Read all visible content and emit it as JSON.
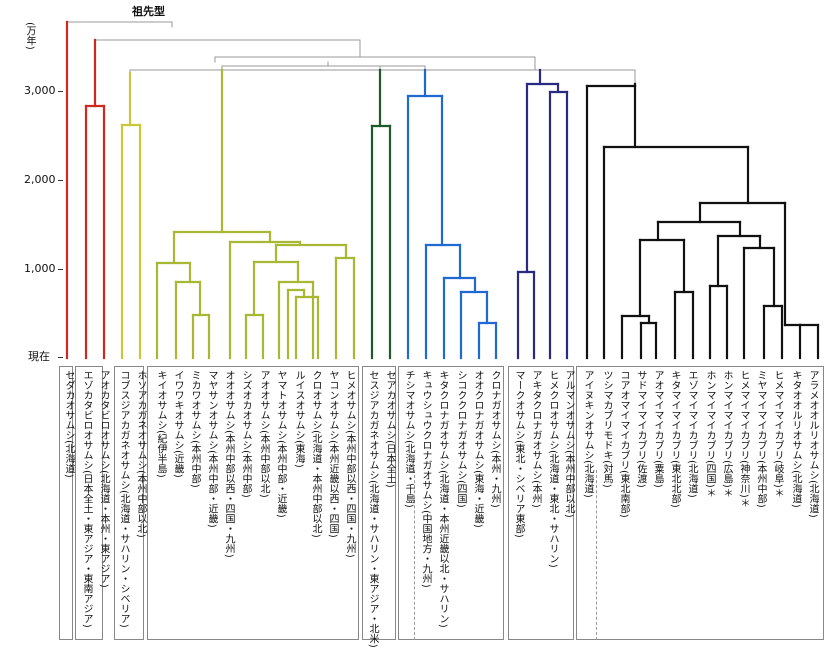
{
  "ancestor_label": "祖先型",
  "axis": {
    "unit": "(万年)",
    "ticks": [
      {
        "label": "3,000",
        "value": 3000
      },
      {
        "label": "2,000",
        "value": 2000
      },
      {
        "label": "1,000",
        "value": 1000
      },
      {
        "label": "現在",
        "value": 0
      }
    ]
  },
  "colors": {
    "red_clade": "#cc2a1e",
    "yellow_clade": "#c8c83c",
    "olive_clade": "#a8b832",
    "green_clade": "#1f5a2a",
    "blue_clade": "#1e6ad2",
    "purple_clade": "#2a2a82",
    "black_clade": "#111111",
    "gray_root": "#999999"
  },
  "leaves": [
    {
      "name": "セダカオサムシ(北海道)",
      "color": "red"
    },
    {
      "name": "エゾカタビロオサムシ(日本全土・東アジア・東南アジア)",
      "color": "red"
    },
    {
      "name": "アオカタビロオサムシ(北海道・本州・東アジア)",
      "color": "red"
    },
    {
      "name": "コブスジアカガネオサムシ(北海道・サハリン・シベリア)",
      "color": "yellow"
    },
    {
      "name": "ホソアカガネオサムシ(本州中部以北)",
      "color": "yellow"
    },
    {
      "name": "キイオサムシ(紀伊半島)",
      "color": "olive"
    },
    {
      "name": "イワワキオサムシ(近畿)",
      "color": "olive"
    },
    {
      "name": "ミカワオサムシ(本州中部)",
      "color": "olive"
    },
    {
      "name": "マヤサンオサムシ(本州中部・近畿)",
      "color": "olive"
    },
    {
      "name": "オオオサムシ(本州中部以西・四国・九州)",
      "color": "olive"
    },
    {
      "name": "シズオカオサムシ(本州中部)",
      "color": "olive"
    },
    {
      "name": "アオオサムシ(本州中部以北)",
      "color": "olive"
    },
    {
      "name": "ヤマトオサムシ(本州中部・近畿)",
      "color": "olive"
    },
    {
      "name": "ルイスオサムシ(東海)",
      "color": "olive"
    },
    {
      "name": "クロオサムシ(北海道・本州中部以北)",
      "color": "olive"
    },
    {
      "name": "ヤコンオサムシ(本州近畿以西・四国)",
      "color": "olive"
    },
    {
      "name": "ヒメオサムシ(本州中部以西・四国・九州)",
      "color": "olive"
    },
    {
      "name": "セスジアカガネオサムシ(北海道・サハリン・東アジア・北米)",
      "color": "green"
    },
    {
      "name": "セアカオサムシ(日本全土)",
      "color": "green"
    },
    {
      "name": "チシマオサムシ(北海道・千島)",
      "color": "blue"
    },
    {
      "name": "キュウシュウクロナガオサムシ(中国地方・九州)",
      "color": "blue"
    },
    {
      "name": "キタクロナガオサムシ(北海道・本州近畿以北・サハリン)",
      "color": "blue"
    },
    {
      "name": "シコククロナガオサムシ(四国)",
      "color": "blue"
    },
    {
      "name": "オオクロナガオサムシ(東海・近畿)",
      "color": "blue"
    },
    {
      "name": "クロナガオサムシ(本州・九州)",
      "color": "blue"
    },
    {
      "name": "マークオサムシ(東北・シベリア東部)",
      "color": "purple"
    },
    {
      "name": "アキタクロナガオサムシ(本州)",
      "color": "purple"
    },
    {
      "name": "ヒメクロオサムシ(北海道・東北・サハリン)",
      "color": "purple"
    },
    {
      "name": "アルマンオサムシ(本州中部以北)",
      "color": "purple"
    },
    {
      "name": "アイヌキンオサムシ(北海道)",
      "color": "black"
    },
    {
      "name": "ツシマカブリモドキ(対馬)",
      "color": "black"
    },
    {
      "name": "コアオマイマイカブリ(東北南部)",
      "color": "black"
    },
    {
      "name": "サドマイマイカブリ(佐渡)",
      "color": "black"
    },
    {
      "name": "アオマイマイカブリ(粟島)",
      "color": "black"
    },
    {
      "name": "キタマイマイカブリ(東北北部)",
      "color": "black"
    },
    {
      "name": "エゾマイマイカブリ(北海道)",
      "color": "black"
    },
    {
      "name": "ホンマイマイカブリ(四国)＊",
      "color": "black"
    },
    {
      "name": "ホンマイマイカブリ(広島)＊",
      "color": "black"
    },
    {
      "name": "ヒメマイマイカブリ(神奈川)＊",
      "color": "black"
    },
    {
      "name": "ミヤマイマイカブリ(本州中部)",
      "color": "black"
    },
    {
      "name": "ヒメマイマイカブリ(岐阜)＊",
      "color": "black"
    },
    {
      "name": "キタオオルリオサムシ(北海道)",
      "color": "black"
    },
    {
      "name": "アラメオオルリオサムシ(北海道)",
      "color": "black"
    }
  ]
}
